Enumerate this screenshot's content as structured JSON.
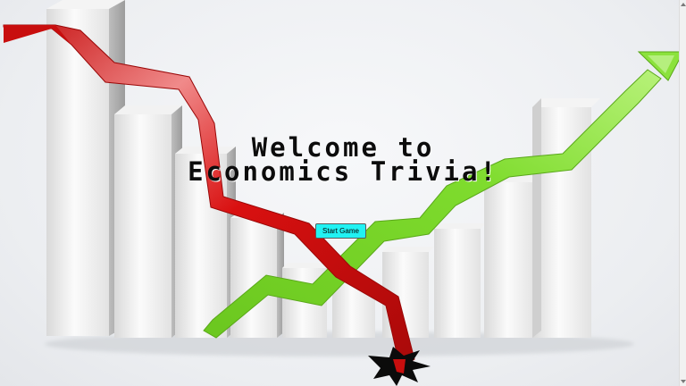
{
  "page": {
    "title_line1": "Welcome to",
    "title_line2": "Economics Trivia!",
    "start_button_label": "Start Game"
  },
  "colors": {
    "background": "#eceef1",
    "button": "#21f2f3",
    "falling_arrow": "#d40f0f",
    "rising_arrow": "#7ad82b",
    "bars": "#e6e6e6"
  },
  "icons": {
    "falling_arrow": "red-downward-trend-arrow",
    "rising_arrow": "green-upward-trend-arrow",
    "impact": "crash-burst-icon"
  }
}
